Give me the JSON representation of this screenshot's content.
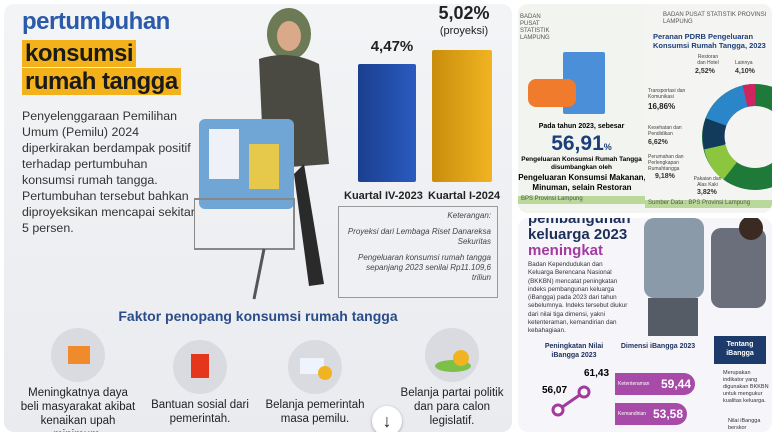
{
  "left_card": {
    "title_line1": "pertumbuhan",
    "title_line2": "konsumsi",
    "title_line3": "rumah tangga",
    "paragraph": "Penyelenggaraan Pemilihan Umum (Pemilu) 2024 diperkirakan berdampak positif terhadap pertumbuhan konsumsi rumah tangga. Pertumbuhan tersebut bahkan diproyeksikan mencapai sekitar 5 persen.",
    "bars": [
      {
        "label": "Kuartal IV-2023",
        "value": "4,47%",
        "color": "#1f4aa0"
      },
      {
        "label": "Kuartal I-2024",
        "value": "5,02%",
        "note": "(proyeksi)",
        "color": "#e2a514"
      }
    ],
    "keterangan": {
      "title": "Keterangan:",
      "line1": "Proyeksi dari Lembaga Riset Danareksa Sekuritas",
      "line2": "Pengeluaran konsumsi rumah tangga sepanjang 2023 senilai Rp11.109,6 triliun"
    },
    "factors_heading": "Faktor penopang konsumsi rumah tangga",
    "factors": [
      {
        "icon": "cart-up-icon",
        "text": "Meningkatnya daya beli masyarakat akibat kenaikan upah minimum."
      },
      {
        "icon": "shopping-bag-icon",
        "text": "Bantuan sosial dari pemerintah."
      },
      {
        "icon": "money-up-icon",
        "text": "Belanja pemerintah masa pemilu."
      },
      {
        "icon": "party-coins-icon",
        "text": "Belanja partai politik dan para calon legislatif."
      }
    ],
    "scroll_down": "↓"
  },
  "top_right": {
    "a": {
      "header": "BADAN PUSAT STATISTIK LAMPUNG",
      "intro": "Pada tahun 2023, sebesar",
      "value": "56,91",
      "unit": "%",
      "line1": "Pengeluaran Konsumsi Rumah Tangga",
      "line2": "disumbangkan oleh",
      "line3": "Pengeluaran Konsumsi Makanan,",
      "line4": "Minuman, selain Restoran",
      "source": "BPS Provinsi Lampung"
    },
    "b": {
      "header": "BADAN PUSAT STATISTIK PROVINSI LAMPUNG",
      "title": "Peranan PDRB Pengeluaran Konsumsi Rumah Tangga, 2023",
      "slices": [
        {
          "label": "Restoran dan Hotel",
          "value": "2,52%"
        },
        {
          "label": "Lainnya",
          "value": "4,10%"
        },
        {
          "label": "Transportasi dan Komunikasi",
          "value": "16,86%"
        },
        {
          "label": "Kesehatan dan Pendidikan",
          "value": "6,62%"
        },
        {
          "label": "Perumahan dan Perlengkapan Rumahtangga",
          "value": "9,18%"
        },
        {
          "label": "Pakaian dan Alas Kaki",
          "value": "3,82%"
        }
      ],
      "source": "Sumber Data : BPS Provinsi Lampung"
    }
  },
  "bottom_right": {
    "title_line1": "pembangunan",
    "title_line2": "keluarga 2023",
    "title_line3": "meningkat",
    "paragraph": "Badan Kependudukan dan Keluarga Berencana Nasional (BKKBN) mencatat peningkatan indeks pembangunan keluarga (iBangga) pada 2023 dari tahun sebelumnya. Indeks tersebut diukur dari nilai tiga dimensi, yakni ketenteraman, kemandirian dan kebahagiaan.",
    "col1_title": "Peningkatan Nilai iBangga 2023",
    "col1_values": [
      "56,07",
      "61,43"
    ],
    "col2_title": "Dimensi iBangga 2023",
    "dims": [
      {
        "label": "Ketenteraman",
        "value": "59,44"
      },
      {
        "label": "Kemandirian",
        "value": "53,58"
      }
    ],
    "col3_title": "Tentang iBangga",
    "col3_text": "Merupakan indikator yang digunakan BKKBN untuk mengukur kualitas keluarga.",
    "col3_text2": "Nilai iBangga berskor"
  }
}
